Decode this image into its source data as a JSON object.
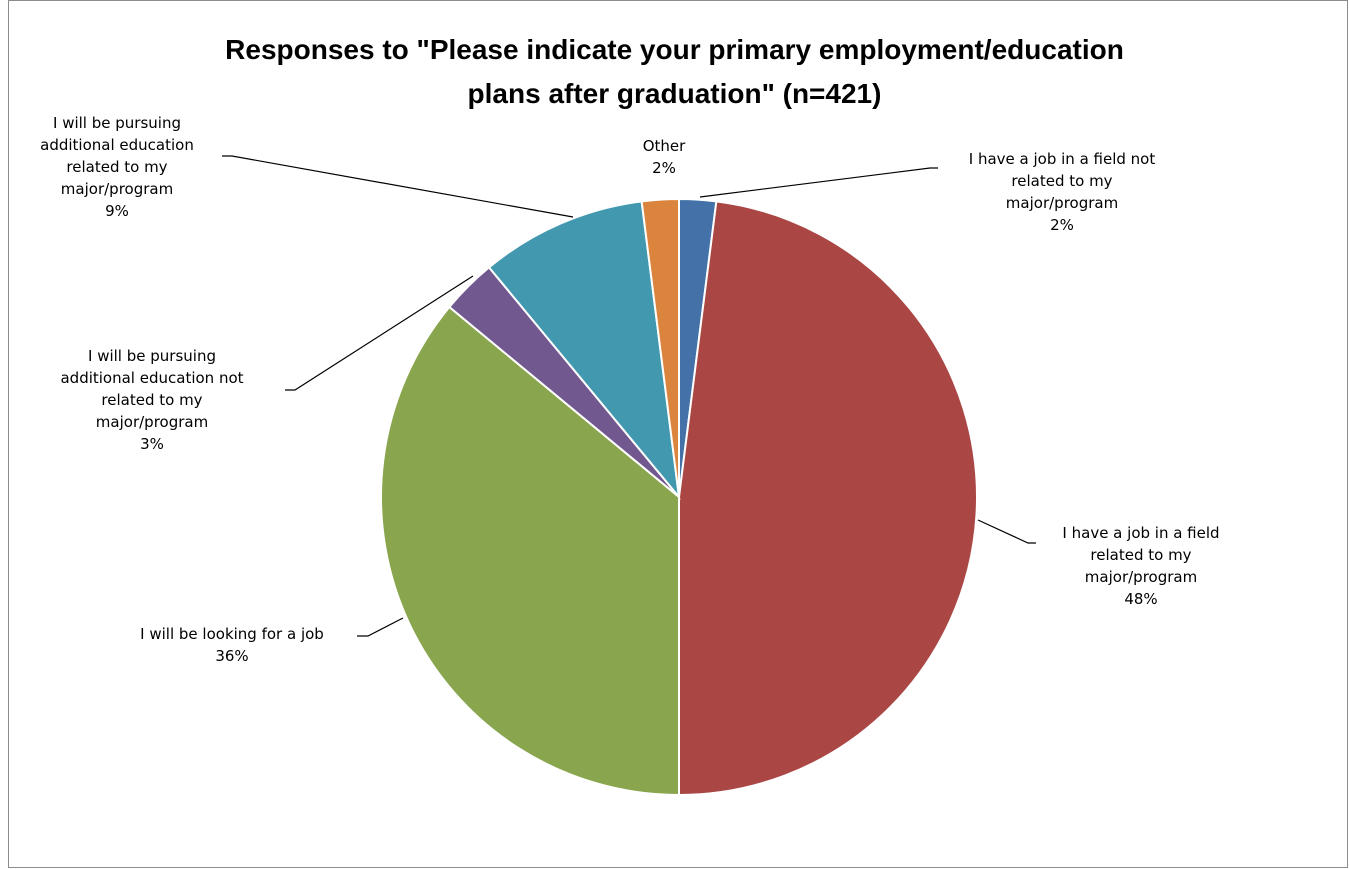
{
  "chart_data": {
    "type": "pie",
    "title_lines": [
      "Responses to \"Please indicate your primary employment/education",
      "plans after graduation\" (n=421)"
    ],
    "slices": [
      {
        "name": "I have a job in a field not related to my major/program",
        "label_lines": [
          "I have a job in a field not",
          "related to my",
          "major/program"
        ],
        "value": 2,
        "value_label": "2%",
        "color": "#4472a8"
      },
      {
        "name": "I have a job in a field related to my major/program",
        "label_lines": [
          "I have a job in a field",
          "related to my",
          "major/program"
        ],
        "value": 48,
        "value_label": "48%",
        "color": "#aa4745"
      },
      {
        "name": "I will be looking for a job",
        "label_lines": [
          "I will be looking for a job"
        ],
        "value": 36,
        "value_label": "36%",
        "color": "#89a54e"
      },
      {
        "name": "I will be pursuing additional education not related to my major/program",
        "label_lines": [
          "I will be pursuing",
          "additional education not",
          "related to my",
          "major/program"
        ],
        "value": 3,
        "value_label": "3%",
        "color": "#71588f"
      },
      {
        "name": "I will be pursuing additional education related to my major/program",
        "label_lines": [
          "I will be pursuing",
          "additional education",
          "related to my",
          "major/program"
        ],
        "value": 9,
        "value_label": "9%",
        "color": "#4198af"
      },
      {
        "name": "Other",
        "label_lines": [
          "Other"
        ],
        "value": 2,
        "value_label": "2%",
        "color": "#db843d"
      }
    ],
    "legend": "none",
    "data_labels": "outside-with-leader-lines"
  }
}
